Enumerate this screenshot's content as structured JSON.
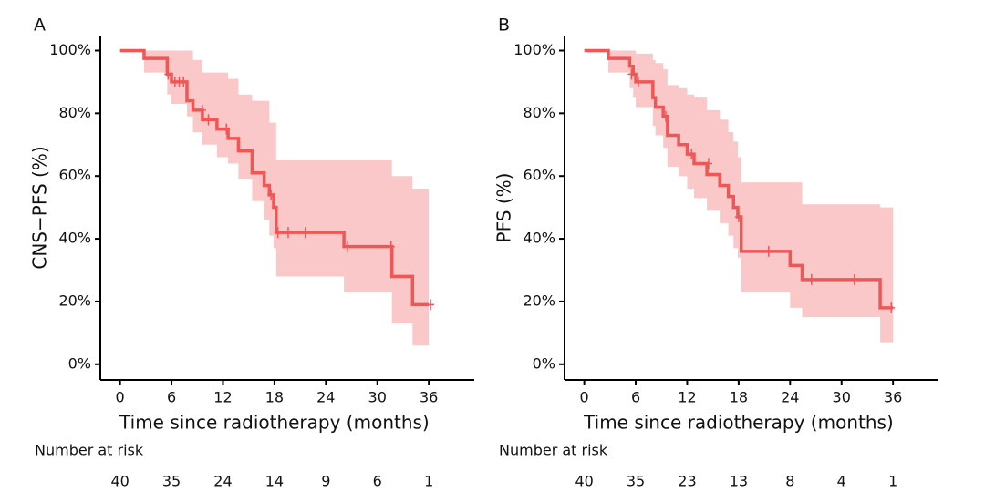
{
  "chart_data": [
    {
      "type": "step",
      "panel_label": "A",
      "y_label": "CNS−PFS (%)",
      "x_label": "Time since radiotherapy (months)",
      "x": [
        0,
        2.8,
        5.5,
        6,
        7.8,
        8.5,
        9.6,
        11.3,
        12.6,
        13.8,
        15.4,
        16.8,
        17.4,
        17.9,
        18.2,
        26.1,
        31.7,
        34.1,
        36
      ],
      "values": [
        100,
        97.5,
        92.5,
        90,
        84,
        81,
        78,
        75,
        72,
        68,
        61,
        57,
        54,
        50,
        42,
        37.5,
        28,
        19,
        19
      ],
      "upper": [
        100,
        100,
        100,
        100,
        100,
        97,
        93,
        93,
        91,
        86,
        84,
        84,
        77,
        77,
        65,
        65,
        60,
        56,
        56
      ],
      "lower": [
        100,
        93,
        86,
        83,
        79,
        74,
        70,
        66,
        64,
        59,
        52,
        46,
        41,
        37,
        28,
        23,
        13,
        6,
        6
      ],
      "censored": {
        "x": [
          5.6,
          6.4,
          6.9,
          7.4,
          9.6,
          10.3,
          12.4,
          17.6,
          18.4,
          19.6,
          21.6,
          26.5,
          31.6,
          36.2
        ],
        "values": [
          92.5,
          90,
          90,
          90,
          81,
          78,
          75,
          54,
          42,
          42,
          42,
          37.5,
          37.5,
          19
        ]
      },
      "color": "#ef5757",
      "band_color": "#f8b5b5",
      "xlim": [
        -2.3,
        41.3
      ],
      "ylim": [
        -5,
        104.5
      ],
      "xticks": [
        0,
        6,
        12,
        18,
        24,
        30,
        36
      ],
      "yticks": [
        {
          "value": 0,
          "label": "0%"
        },
        {
          "value": 20,
          "label": "20%"
        },
        {
          "value": 40,
          "label": "40%"
        },
        {
          "value": 60,
          "label": "60%"
        },
        {
          "value": 80,
          "label": "80%"
        },
        {
          "value": 100,
          "label": "100%"
        }
      ],
      "risk_title": "Number at risk",
      "risk_counts": [
        40,
        35,
        24,
        14,
        9,
        6,
        1
      ]
    },
    {
      "type": "step",
      "panel_label": "B",
      "y_label": "PFS (%)",
      "x_label": "Time since radiotherapy (months)",
      "x": [
        0,
        2.8,
        5.3,
        5.7,
        6,
        8,
        8.3,
        9.2,
        9.7,
        11,
        12,
        12.8,
        14.3,
        15.8,
        16.8,
        17.4,
        17.9,
        18.3,
        24,
        25.4,
        34.5,
        36
      ],
      "values": [
        100,
        97.5,
        95,
        92.5,
        90,
        85,
        82,
        79,
        73,
        70,
        67,
        64,
        60.5,
        57,
        53.5,
        50,
        47,
        36,
        31.5,
        27,
        18,
        18
      ],
      "upper": [
        100,
        100,
        100,
        100,
        99,
        97,
        96,
        94,
        89,
        88,
        86,
        85,
        81,
        78,
        74,
        71,
        66,
        58,
        58,
        51,
        50,
        50
      ],
      "lower": [
        100,
        93,
        88,
        85,
        82,
        76,
        73,
        69,
        63,
        60,
        56,
        53,
        49,
        45,
        41,
        37,
        34,
        23,
        18,
        15,
        7,
        7
      ],
      "censored": {
        "x": [
          5.5,
          6.3,
          9.5,
          12.5,
          14.5,
          18,
          21.5,
          26.5,
          31.5,
          35.8
        ],
        "values": [
          92.5,
          90,
          79,
          67,
          64,
          47,
          36,
          27,
          27,
          18
        ]
      },
      "color": "#ef5757",
      "band_color": "#f8b5b5",
      "xlim": [
        -2.3,
        41.3
      ],
      "ylim": [
        -5,
        104.5
      ],
      "xticks": [
        0,
        6,
        12,
        18,
        24,
        30,
        36
      ],
      "yticks": [
        {
          "value": 0,
          "label": "0%"
        },
        {
          "value": 20,
          "label": "20%"
        },
        {
          "value": 40,
          "label": "40%"
        },
        {
          "value": 60,
          "label": "60%"
        },
        {
          "value": 80,
          "label": "80%"
        },
        {
          "value": 100,
          "label": "100%"
        }
      ],
      "risk_title": "Number at risk",
      "risk_counts": [
        40,
        35,
        23,
        13,
        8,
        4,
        1
      ]
    }
  ]
}
